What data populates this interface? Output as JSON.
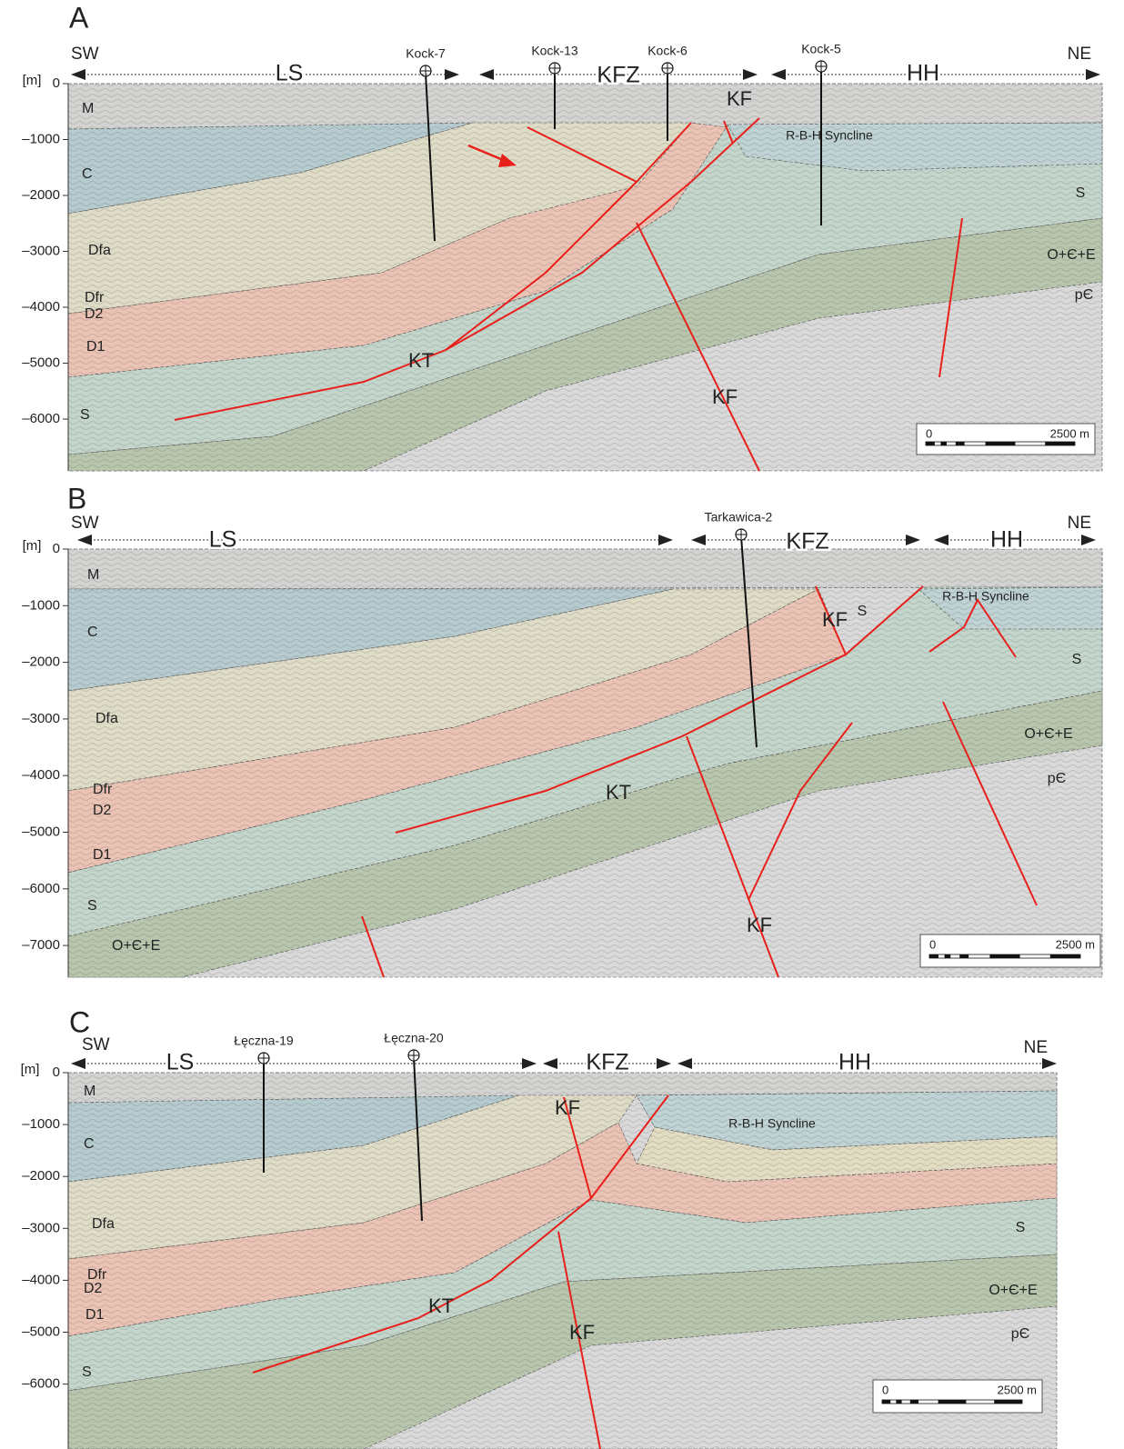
{
  "panels": [
    {
      "label": "A",
      "depth_unit": "[m]",
      "depth_ticks": [
        0,
        {
          "value": -1000,
          "label": "–1000"
        },
        {
          "value": -2000,
          "label": "–2000"
        },
        {
          "value": -3000,
          "label": "–3000"
        },
        {
          "value": -4000,
          "label": "–4000"
        },
        {
          "value": -5000,
          "label": "–5000"
        },
        {
          "value": -6000,
          "label": "–6000"
        }
      ],
      "ends": [
        "SW",
        "NE"
      ],
      "zones": [
        "LS",
        "KFZ",
        "HH"
      ],
      "wells": [
        "Kock-7",
        "Kock-13",
        "Kock-6",
        "Kock-5"
      ],
      "units": [
        "M",
        "C",
        "Dfa",
        "Dfr",
        "D2",
        "D1",
        "S",
        "S",
        "O+Є+E",
        "pЄ"
      ],
      "faults": [
        "KT",
        "KF",
        "KF"
      ],
      "syncline": "R-B-H Syncline",
      "scale": [
        "0",
        "2500 m"
      ]
    },
    {
      "label": "B",
      "depth_unit": "[m]",
      "depth_ticks": [
        0,
        {
          "value": -1000,
          "label": "–1000"
        },
        {
          "value": -2000,
          "label": "–2000"
        },
        {
          "value": -3000,
          "label": "–3000"
        },
        {
          "value": -4000,
          "label": "–4000"
        },
        {
          "value": -5000,
          "label": "–5000"
        },
        {
          "value": -6000,
          "label": "–6000"
        },
        {
          "value": -7000,
          "label": "–7000"
        }
      ],
      "ends": [
        "SW",
        "NE"
      ],
      "zones": [
        "LS",
        "KFZ",
        "HH"
      ],
      "wells": [
        "Tarkawica-2"
      ],
      "units": [
        "M",
        "C",
        "Dfa",
        "Dfr",
        "D2",
        "D1",
        "S",
        "O+Є+E",
        "S",
        "S",
        "O+Є+E",
        "pЄ"
      ],
      "faults": [
        "KF",
        "KT",
        "KF"
      ],
      "syncline": "R-B-H Syncline",
      "scale": [
        "0",
        "2500 m"
      ]
    },
    {
      "label": "C",
      "depth_unit": "[m]",
      "depth_ticks": [
        0,
        {
          "value": -1000,
          "label": "–1000"
        },
        {
          "value": -2000,
          "label": "–2000"
        },
        {
          "value": -3000,
          "label": "–3000"
        },
        {
          "value": -4000,
          "label": "–4000"
        },
        {
          "value": -5000,
          "label": "–5000"
        },
        {
          "value": -6000,
          "label": "–6000"
        }
      ],
      "ends": [
        "SW",
        "NE"
      ],
      "zones": [
        "LS",
        "KFZ",
        "HH"
      ],
      "wells": [
        "Łęczna-19",
        "Łęczna-20"
      ],
      "units": [
        "M",
        "C",
        "Dfa",
        "Dfr",
        "D2",
        "D1",
        "S",
        "S",
        "O+Є+E",
        "pЄ"
      ],
      "faults": [
        "KF",
        "KT",
        "KF"
      ],
      "syncline": "R-B-H Syncline",
      "scale": [
        "0",
        "2500 m"
      ]
    }
  ]
}
